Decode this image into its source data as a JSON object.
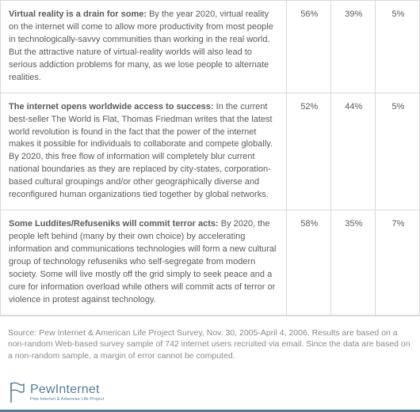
{
  "rows": [
    {
      "lead": "Virtual reality is a drain for some:",
      "body": "  By the year 2020, virtual reality on the internet will come to allow more productivity from most people in technologically-savvy communities than working in the real world.  But the attractive nature of virtual-reality worlds will also lead to serious addiction problems for many, as we lose people to alternate realities.",
      "p1": "56%",
      "p2": "39%",
      "p3": "5%"
    },
    {
      "lead": "The internet opens worldwide access to success:",
      "body": "  In the current best-seller The World is Flat, Thomas Friedman writes that the latest world revolution is found in the fact that the power of the internet makes it possible for individuals to collaborate and compete globally.  By 2020, this free flow of information will completely blur current national boundaries as they are replaced by city-states, corporation-based cultural groupings and/or other geographically diverse and reconfigured human organizations tied together by global networks.",
      "p1": "52%",
      "p2": "44%",
      "p3": "5%"
    },
    {
      "lead": "Some Luddites/Refuseniks will commit terror acts:",
      "body": " By 2020, the people left behind (many by their own choice) by accelerating information and communications technologies will form a new cultural group of technology refuseniks who self-segregate from modern society.  Some will live mostly off the grid simply to seek peace and a cure for information overload while others will commit acts of terror or violence in protest against technology.",
      "p1": "58%",
      "p2": "35%",
      "p3": "7%"
    }
  ],
  "source": "Source: Pew Internet & American Life Project Survey, Nov. 30, 2005-April 4, 2006. Results are based on a non-random Web-based survey sample of 742 internet users recruited via email. Since the data are based on a non-random sample, a margin of error cannot be computed.",
  "logo": {
    "pew": "Pew",
    "internet": "Internet",
    "sub": "Pew Internet & American Life Project"
  },
  "colors": {
    "border": "#d9d9d9",
    "text": "#5a5a5a",
    "source_text": "#8a8a8a",
    "accent": "#5a7a99",
    "background": "#ffffff"
  },
  "typography": {
    "body_fontsize": 11,
    "source_fontsize": 10.5,
    "logo_main_fontsize": 16,
    "logo_sub_fontsize": 5.5
  }
}
